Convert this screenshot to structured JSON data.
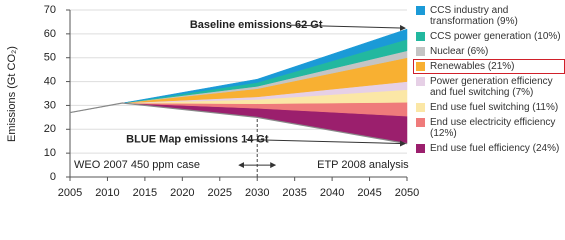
{
  "chart_data": {
    "type": "stacked_area",
    "y_label": "Emissions (Gt CO₂)",
    "x": [
      2005,
      2012,
      2030,
      2050
    ],
    "base": [
      27,
      31,
      25,
      14
    ],
    "series": [
      {
        "name": "End use fuel efficiency (24%)",
        "color": "#9b1f6d",
        "values": [
          0,
          0,
          3.8,
          11.5
        ]
      },
      {
        "name": "End use electricity efficiency (12%)",
        "color": "#ef7b7b",
        "values": [
          0,
          0,
          1.9,
          5.8
        ]
      },
      {
        "name": "End use fuel switching (11%)",
        "color": "#fbe7a6",
        "values": [
          0,
          0,
          1.8,
          5.3
        ]
      },
      {
        "name": "Power generation efficiency and fuel switching (7%)",
        "color": "#e6d0e6",
        "values": [
          0,
          0,
          1.1,
          3.4
        ]
      },
      {
        "name": "Renewables (21%)",
        "color": "#f8b032",
        "values": [
          0,
          0,
          3.4,
          10
        ],
        "highlight": true
      },
      {
        "name": "Nuclear (6%)",
        "color": "#c4c4c4",
        "values": [
          0,
          0,
          1,
          2.9
        ]
      },
      {
        "name": "CCS power generation (10%)",
        "color": "#22b89f",
        "values": [
          0,
          0,
          1.6,
          4.8
        ]
      },
      {
        "name": "CCS industry and transformation (9%)",
        "color": "#1b9ad7",
        "values": [
          0,
          0,
          1.4,
          4.3
        ]
      }
    ],
    "annotations": [
      "Baseline emissions 62 Gt",
      "BLUE Map emissions 14 Gt",
      "WEO 2007 450 ppm case",
      "ETP 2008 analysis"
    ],
    "divider": 2030,
    "xlim": [
      2005,
      2050
    ],
    "xticks": [
      2005,
      2010,
      2015,
      2020,
      2025,
      2030,
      2035,
      2040,
      2045,
      2050
    ],
    "ylim": [
      0,
      70
    ],
    "yticks": [
      0,
      10,
      20,
      30,
      40,
      50,
      60,
      70
    ],
    "grid": true
  }
}
